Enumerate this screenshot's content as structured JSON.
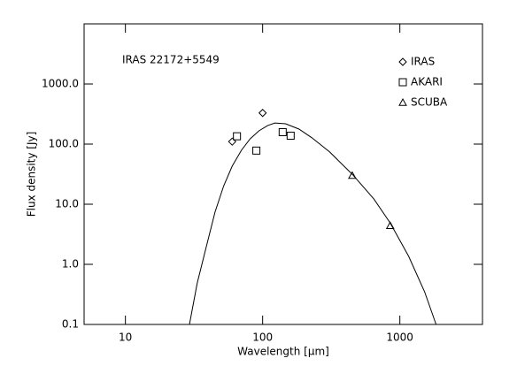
{
  "chart_data": {
    "type": "scatter",
    "annotation": "IRAS 22172+5549",
    "xlabel": "Wavelength [μm]",
    "ylabel": "Flux density [Jy]",
    "xscale": "log",
    "yscale": "log",
    "xlim": [
      5,
      4000
    ],
    "ylim": [
      0.1,
      10000
    ],
    "xticks": [
      10,
      100,
      1000
    ],
    "yticks": [
      0.1,
      {
        "value": 1,
        "label": "1.0"
      },
      {
        "value": 10,
        "label": "10.0"
      },
      {
        "value": 100,
        "label": "100.0"
      },
      {
        "value": 1000,
        "label": "1000.0"
      }
    ],
    "legend": "upper right",
    "series": [
      {
        "name": "IRAS",
        "marker": "diamond",
        "color": "#000000",
        "x": [
          60,
          100
        ],
        "values": [
          110,
          330
        ]
      },
      {
        "name": "AKARI",
        "marker": "square",
        "color": "#000000",
        "x": [
          65,
          90,
          140,
          160
        ],
        "values": [
          135,
          78,
          158,
          138
        ]
      },
      {
        "name": "SCUBA",
        "marker": "triangle",
        "color": "#000000",
        "x": [
          450,
          850
        ],
        "values": [
          30,
          4.4
        ]
      }
    ],
    "curve": {
      "color": "#000000",
      "x": [
        29.3,
        33.4,
        38.7,
        45,
        52,
        60,
        70,
        81,
        94,
        109,
        123,
        147,
        184,
        229,
        308,
        453,
        646,
        850,
        1159,
        1513,
        1837
      ],
      "values": [
        0.1,
        0.49,
        1.9,
        7.4,
        20,
        43,
        79,
        122,
        166,
        204,
        225,
        218,
        178,
        127,
        74,
        31,
        12.2,
        4.9,
        1.36,
        0.35,
        0.1
      ]
    }
  }
}
